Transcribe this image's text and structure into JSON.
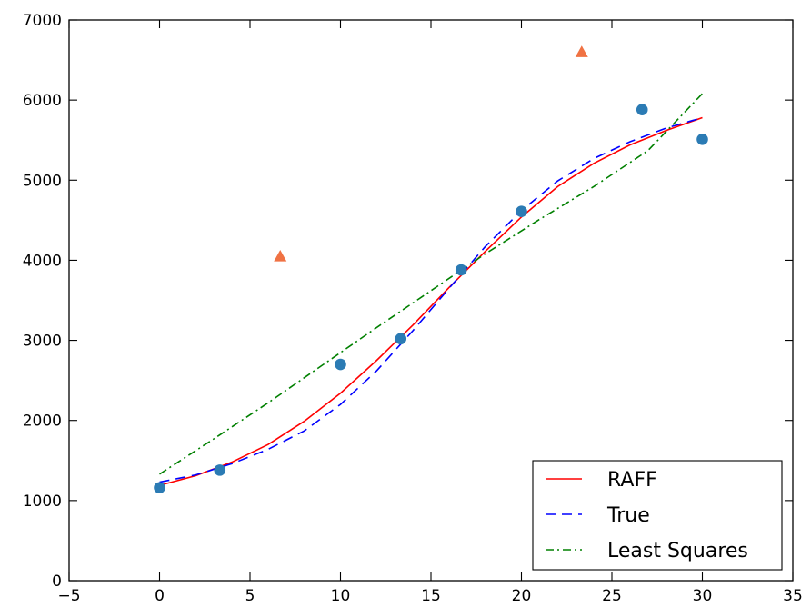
{
  "chart_data": {
    "type": "scatter",
    "xlim": [
      -5,
      35
    ],
    "ylim": [
      0,
      7000
    ],
    "x_ticks": [
      -5,
      0,
      5,
      10,
      15,
      20,
      25,
      30,
      35
    ],
    "y_ticks": [
      0,
      1000,
      2000,
      3000,
      4000,
      5000,
      6000,
      7000
    ],
    "grid": false,
    "legend_position": "bottom-right",
    "scatter_series": [
      {
        "marker": "circle",
        "color": "#2b7bb4",
        "points": [
          {
            "x": 0,
            "y": 1160
          },
          {
            "x": 3.33,
            "y": 1380
          },
          {
            "x": 10,
            "y": 2700
          },
          {
            "x": 13.33,
            "y": 3020
          },
          {
            "x": 16.67,
            "y": 3880
          },
          {
            "x": 20,
            "y": 4610
          },
          {
            "x": 26.67,
            "y": 5880
          },
          {
            "x": 30,
            "y": 5510
          }
        ]
      },
      {
        "marker": "triangle",
        "color": "#f07243",
        "points": [
          {
            "x": 6.67,
            "y": 4050
          },
          {
            "x": 23.33,
            "y": 6600
          }
        ]
      }
    ],
    "line_series": [
      {
        "name": "RAFF",
        "color": "#ff0000",
        "style": "solid",
        "points": [
          {
            "x": 0,
            "y": 1190
          },
          {
            "x": 2,
            "y": 1310
          },
          {
            "x": 4,
            "y": 1480
          },
          {
            "x": 6,
            "y": 1700
          },
          {
            "x": 8,
            "y": 1990
          },
          {
            "x": 10,
            "y": 2340
          },
          {
            "x": 12,
            "y": 2750
          },
          {
            "x": 14,
            "y": 3190
          },
          {
            "x": 16,
            "y": 3660
          },
          {
            "x": 18,
            "y": 4110
          },
          {
            "x": 20,
            "y": 4540
          },
          {
            "x": 22,
            "y": 4920
          },
          {
            "x": 24,
            "y": 5210
          },
          {
            "x": 26,
            "y": 5440
          },
          {
            "x": 28,
            "y": 5620
          },
          {
            "x": 30,
            "y": 5780
          }
        ]
      },
      {
        "name": "True",
        "color": "#0000ff",
        "style": "dashed",
        "points": [
          {
            "x": 0,
            "y": 1230
          },
          {
            "x": 2,
            "y": 1320
          },
          {
            "x": 4,
            "y": 1460
          },
          {
            "x": 6,
            "y": 1640
          },
          {
            "x": 8,
            "y": 1870
          },
          {
            "x": 10,
            "y": 2200
          },
          {
            "x": 12,
            "y": 2620
          },
          {
            "x": 14,
            "y": 3120
          },
          {
            "x": 16,
            "y": 3650
          },
          {
            "x": 18,
            "y": 4170
          },
          {
            "x": 20,
            "y": 4620
          },
          {
            "x": 22,
            "y": 4990
          },
          {
            "x": 24,
            "y": 5270
          },
          {
            "x": 26,
            "y": 5480
          },
          {
            "x": 28,
            "y": 5650
          },
          {
            "x": 30,
            "y": 5780
          }
        ]
      },
      {
        "name": "Least Squares",
        "color": "#008000",
        "style": "dashdot",
        "points": [
          {
            "x": 0,
            "y": 1330
          },
          {
            "x": 3,
            "y": 1770
          },
          {
            "x": 6,
            "y": 2220
          },
          {
            "x": 9,
            "y": 2690
          },
          {
            "x": 12,
            "y": 3160
          },
          {
            "x": 15,
            "y": 3620
          },
          {
            "x": 18,
            "y": 4080
          },
          {
            "x": 21,
            "y": 4510
          },
          {
            "x": 24,
            "y": 4920
          },
          {
            "x": 27,
            "y": 5370
          },
          {
            "x": 30,
            "y": 6080
          }
        ]
      }
    ],
    "legend": [
      "RAFF",
      "True",
      "Least Squares"
    ]
  }
}
